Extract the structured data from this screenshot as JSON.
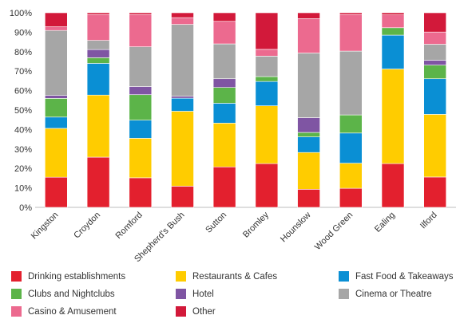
{
  "chart_data": {
    "type": "bar",
    "stacked": true,
    "normalized": true,
    "categories": [
      "Kingston",
      "Croydon",
      "Romford",
      "Shepherd's Bush",
      "Sutton",
      "Bromley",
      "Hounslow",
      "Wood Green",
      "Ealing",
      "Ilford"
    ],
    "y_ticks": [
      "0%",
      "10%",
      "20%",
      "30%",
      "40%",
      "50%",
      "60%",
      "70%",
      "80%",
      "90%",
      "100%"
    ],
    "ylim": [
      0,
      100
    ],
    "grid": false,
    "legend_position": "bottom",
    "series": [
      {
        "name": "Drinking establishments",
        "color": "#e3202e",
        "values": [
          15.5,
          25.8,
          15.2,
          10.9,
          20.8,
          22.5,
          9.3,
          9.8,
          22.5,
          15.6
        ]
      },
      {
        "name": "Restaurants & Cafes",
        "color": "#ffcc00",
        "values": [
          25.1,
          31.9,
          20.3,
          38.5,
          22.5,
          29.7,
          18.9,
          12.9,
          48.6,
          32.2
        ]
      },
      {
        "name": "Fast Food & Takeaways",
        "color": "#0a8fd4",
        "values": [
          5.8,
          16.3,
          9.3,
          6.7,
          10.2,
          12.5,
          8.0,
          15.5,
          17.4,
          18.3
        ]
      },
      {
        "name": "Clubs and Nightclubs",
        "color": "#5cb449",
        "values": [
          9.6,
          2.9,
          13.1,
          0.0,
          8.1,
          2.5,
          2.3,
          9.3,
          3.8,
          7.0
        ]
      },
      {
        "name": "Hotel",
        "color": "#7f55a3",
        "values": [
          1.5,
          4.2,
          4.2,
          1.0,
          4.5,
          0.0,
          7.6,
          0.0,
          0.0,
          2.5
        ]
      },
      {
        "name": "Cinema or Theatre",
        "color": "#a6a6a6",
        "values": [
          33.4,
          4.7,
          20.4,
          36.9,
          17.9,
          10.5,
          33.2,
          32.8,
          0.0,
          8.2
        ]
      },
      {
        "name": "Casino & Amusement",
        "color": "#ec6a8f",
        "values": [
          1.9,
          13.3,
          16.6,
          3.5,
          11.6,
          3.5,
          17.7,
          18.8,
          6.6,
          6.3
        ]
      },
      {
        "name": "Other",
        "color": "#d2193a",
        "values": [
          7.2,
          0.9,
          0.9,
          2.5,
          4.4,
          18.8,
          3.0,
          0.9,
          1.1,
          9.9
        ]
      }
    ]
  }
}
